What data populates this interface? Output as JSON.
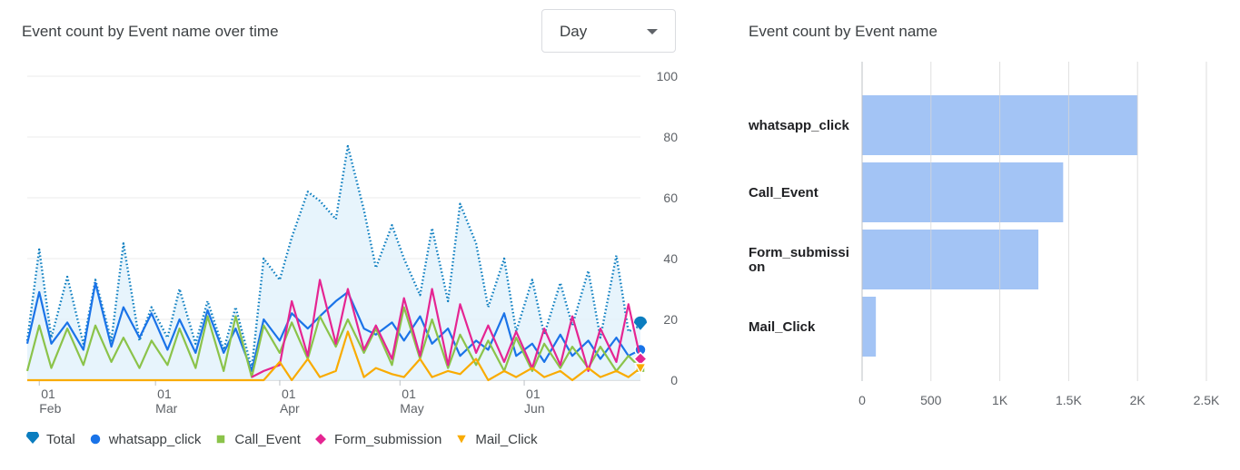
{
  "left_title": "Event count by Event name over time",
  "right_title": "Event count by Event name",
  "dropdown": {
    "value": "Day"
  },
  "legend": [
    {
      "label": "Total",
      "icon": "pin-icon",
      "color": "#0b7dbf"
    },
    {
      "label": "whatsapp_click",
      "icon": "circle-icon",
      "color": "#1a73e8"
    },
    {
      "label": "Call_Event",
      "icon": "square-icon",
      "color": "#8bc34a"
    },
    {
      "label": "Form_submission",
      "icon": "diamond-icon",
      "color": "#e52592"
    },
    {
      "label": "Mail_Click",
      "icon": "triangle-icon",
      "color": "#f9ab00"
    }
  ],
  "chart_data": [
    {
      "type": "line",
      "title": "Event count by Event name over time",
      "ylim": [
        0,
        100
      ],
      "yticks": [
        0,
        20,
        40,
        60,
        80,
        100
      ],
      "x_range": [
        "2024-01-29",
        "2024-06-30"
      ],
      "xticks": [
        {
          "date": "2024-02-01",
          "day": "01",
          "month": "Feb"
        },
        {
          "date": "2024-03-01",
          "day": "01",
          "month": "Mar"
        },
        {
          "date": "2024-04-01",
          "day": "01",
          "month": "Apr"
        },
        {
          "date": "2024-05-01",
          "day": "01",
          "month": "May"
        },
        {
          "date": "2024-06-01",
          "day": "01",
          "month": "Jun"
        }
      ],
      "grid": true,
      "legend_position": "bottom",
      "series": [
        {
          "name": "Total",
          "color": "#0b7dbf",
          "style": "dotted",
          "filled": true,
          "points": [
            [
              "2024-01-29",
              13
            ],
            [
              "2024-02-01",
              43
            ],
            [
              "2024-02-04",
              14
            ],
            [
              "2024-02-08",
              34
            ],
            [
              "2024-02-12",
              12
            ],
            [
              "2024-02-15",
              33
            ],
            [
              "2024-02-19",
              13
            ],
            [
              "2024-02-22",
              45
            ],
            [
              "2024-02-26",
              13
            ],
            [
              "2024-02-29",
              24
            ],
            [
              "2024-03-04",
              14
            ],
            [
              "2024-03-07",
              30
            ],
            [
              "2024-03-11",
              12
            ],
            [
              "2024-03-14",
              26
            ],
            [
              "2024-03-18",
              10
            ],
            [
              "2024-03-21",
              24
            ],
            [
              "2024-03-25",
              4
            ],
            [
              "2024-03-28",
              40
            ],
            [
              "2024-04-01",
              33
            ],
            [
              "2024-04-04",
              47
            ],
            [
              "2024-04-08",
              62
            ],
            [
              "2024-04-11",
              59
            ],
            [
              "2024-04-15",
              53
            ],
            [
              "2024-04-18",
              77
            ],
            [
              "2024-04-22",
              56
            ],
            [
              "2024-04-25",
              37
            ],
            [
              "2024-04-29",
              51
            ],
            [
              "2024-05-02",
              40
            ],
            [
              "2024-05-06",
              28
            ],
            [
              "2024-05-09",
              50
            ],
            [
              "2024-05-13",
              26
            ],
            [
              "2024-05-16",
              58
            ],
            [
              "2024-05-20",
              45
            ],
            [
              "2024-05-23",
              24
            ],
            [
              "2024-05-27",
              40
            ],
            [
              "2024-05-30",
              16
            ],
            [
              "2024-06-03",
              33
            ],
            [
              "2024-06-06",
              15
            ],
            [
              "2024-06-10",
              32
            ],
            [
              "2024-06-13",
              18
            ],
            [
              "2024-06-17",
              36
            ],
            [
              "2024-06-20",
              14
            ],
            [
              "2024-06-24",
              41
            ],
            [
              "2024-06-27",
              16
            ],
            [
              "2024-06-30",
              18
            ]
          ]
        },
        {
          "name": "whatsapp_click",
          "color": "#1a73e8",
          "style": "solid",
          "points": [
            [
              "2024-01-29",
              12
            ],
            [
              "2024-02-01",
              29
            ],
            [
              "2024-02-04",
              12
            ],
            [
              "2024-02-08",
              19
            ],
            [
              "2024-02-12",
              10
            ],
            [
              "2024-02-15",
              32
            ],
            [
              "2024-02-19",
              11
            ],
            [
              "2024-02-22",
              24
            ],
            [
              "2024-02-26",
              14
            ],
            [
              "2024-02-29",
              22
            ],
            [
              "2024-03-04",
              10
            ],
            [
              "2024-03-07",
              20
            ],
            [
              "2024-03-11",
              9
            ],
            [
              "2024-03-14",
              23
            ],
            [
              "2024-03-18",
              9
            ],
            [
              "2024-03-21",
              17
            ],
            [
              "2024-03-25",
              3
            ],
            [
              "2024-03-28",
              20
            ],
            [
              "2024-04-01",
              13
            ],
            [
              "2024-04-04",
              22
            ],
            [
              "2024-04-08",
              17
            ],
            [
              "2024-04-11",
              21
            ],
            [
              "2024-04-15",
              26
            ],
            [
              "2024-04-18",
              29
            ],
            [
              "2024-04-22",
              17
            ],
            [
              "2024-04-25",
              15
            ],
            [
              "2024-04-29",
              19
            ],
            [
              "2024-05-02",
              13
            ],
            [
              "2024-05-06",
              21
            ],
            [
              "2024-05-09",
              12
            ],
            [
              "2024-05-13",
              17
            ],
            [
              "2024-05-16",
              8
            ],
            [
              "2024-05-20",
              13
            ],
            [
              "2024-05-23",
              10
            ],
            [
              "2024-05-27",
              22
            ],
            [
              "2024-05-30",
              8
            ],
            [
              "2024-06-03",
              12
            ],
            [
              "2024-06-06",
              6
            ],
            [
              "2024-06-10",
              15
            ],
            [
              "2024-06-13",
              8
            ],
            [
              "2024-06-17",
              13
            ],
            [
              "2024-06-20",
              7
            ],
            [
              "2024-06-24",
              14
            ],
            [
              "2024-06-27",
              8
            ],
            [
              "2024-06-30",
              10
            ]
          ]
        },
        {
          "name": "Call_Event",
          "color": "#8bc34a",
          "style": "solid",
          "points": [
            [
              "2024-01-29",
              3
            ],
            [
              "2024-02-01",
              18
            ],
            [
              "2024-02-04",
              4
            ],
            [
              "2024-02-08",
              17
            ],
            [
              "2024-02-12",
              5
            ],
            [
              "2024-02-15",
              18
            ],
            [
              "2024-02-19",
              6
            ],
            [
              "2024-02-22",
              14
            ],
            [
              "2024-02-26",
              4
            ],
            [
              "2024-02-29",
              13
            ],
            [
              "2024-03-04",
              5
            ],
            [
              "2024-03-07",
              17
            ],
            [
              "2024-03-11",
              4
            ],
            [
              "2024-03-14",
              21
            ],
            [
              "2024-03-18",
              3
            ],
            [
              "2024-03-21",
              21
            ],
            [
              "2024-03-25",
              1
            ],
            [
              "2024-03-28",
              18
            ],
            [
              "2024-04-01",
              9
            ],
            [
              "2024-04-04",
              19
            ],
            [
              "2024-04-08",
              7
            ],
            [
              "2024-04-11",
              21
            ],
            [
              "2024-04-15",
              11
            ],
            [
              "2024-04-18",
              20
            ],
            [
              "2024-04-22",
              9
            ],
            [
              "2024-04-25",
              17
            ],
            [
              "2024-04-29",
              5
            ],
            [
              "2024-05-02",
              24
            ],
            [
              "2024-05-06",
              7
            ],
            [
              "2024-05-09",
              20
            ],
            [
              "2024-05-13",
              4
            ],
            [
              "2024-05-16",
              15
            ],
            [
              "2024-05-20",
              5
            ],
            [
              "2024-05-23",
              13
            ],
            [
              "2024-05-27",
              3
            ],
            [
              "2024-05-30",
              14
            ],
            [
              "2024-06-03",
              3
            ],
            [
              "2024-06-06",
              12
            ],
            [
              "2024-06-10",
              4
            ],
            [
              "2024-06-13",
              11
            ],
            [
              "2024-06-17",
              4
            ],
            [
              "2024-06-20",
              11
            ],
            [
              "2024-06-24",
              3
            ],
            [
              "2024-06-27",
              8
            ],
            [
              "2024-06-30",
              4
            ]
          ]
        },
        {
          "name": "Form_submission",
          "color": "#e52592",
          "style": "solid",
          "points": [
            [
              "2024-03-25",
              1
            ],
            [
              "2024-03-28",
              3
            ],
            [
              "2024-04-01",
              5
            ],
            [
              "2024-04-04",
              26
            ],
            [
              "2024-04-08",
              8
            ],
            [
              "2024-04-11",
              33
            ],
            [
              "2024-04-15",
              12
            ],
            [
              "2024-04-18",
              30
            ],
            [
              "2024-04-22",
              10
            ],
            [
              "2024-04-25",
              18
            ],
            [
              "2024-04-29",
              7
            ],
            [
              "2024-05-02",
              27
            ],
            [
              "2024-05-06",
              8
            ],
            [
              "2024-05-09",
              30
            ],
            [
              "2024-05-13",
              5
            ],
            [
              "2024-05-16",
              25
            ],
            [
              "2024-05-20",
              9
            ],
            [
              "2024-05-23",
              18
            ],
            [
              "2024-05-27",
              6
            ],
            [
              "2024-05-30",
              16
            ],
            [
              "2024-06-03",
              4
            ],
            [
              "2024-06-06",
              17
            ],
            [
              "2024-06-10",
              5
            ],
            [
              "2024-06-13",
              21
            ],
            [
              "2024-06-17",
              3
            ],
            [
              "2024-06-20",
              17
            ],
            [
              "2024-06-24",
              6
            ],
            [
              "2024-06-27",
              25
            ],
            [
              "2024-06-30",
              7
            ]
          ]
        },
        {
          "name": "Mail_Click",
          "color": "#f9ab00",
          "style": "solid",
          "points": [
            [
              "2024-01-29",
              0
            ],
            [
              "2024-03-25",
              0
            ],
            [
              "2024-03-28",
              0
            ],
            [
              "2024-04-01",
              6
            ],
            [
              "2024-04-04",
              0
            ],
            [
              "2024-04-08",
              7
            ],
            [
              "2024-04-11",
              1
            ],
            [
              "2024-04-15",
              3
            ],
            [
              "2024-04-18",
              16
            ],
            [
              "2024-04-22",
              1
            ],
            [
              "2024-04-25",
              4
            ],
            [
              "2024-04-29",
              2
            ],
            [
              "2024-05-02",
              1
            ],
            [
              "2024-05-06",
              7
            ],
            [
              "2024-05-09",
              1
            ],
            [
              "2024-05-13",
              3
            ],
            [
              "2024-05-16",
              2
            ],
            [
              "2024-05-20",
              7
            ],
            [
              "2024-05-23",
              0
            ],
            [
              "2024-05-27",
              3
            ],
            [
              "2024-05-30",
              1
            ],
            [
              "2024-06-03",
              4
            ],
            [
              "2024-06-06",
              1
            ],
            [
              "2024-06-10",
              3
            ],
            [
              "2024-06-13",
              0
            ],
            [
              "2024-06-17",
              4
            ],
            [
              "2024-06-20",
              1
            ],
            [
              "2024-06-24",
              3
            ],
            [
              "2024-06-27",
              1
            ],
            [
              "2024-06-30",
              4
            ]
          ]
        }
      ]
    },
    {
      "type": "bar",
      "orientation": "horizontal",
      "title": "Event count by Event name",
      "categories": [
        "whatsapp_click",
        "Call_Event",
        "Form_submission",
        "Mail_Click"
      ],
      "category_labels": [
        "whatsapp_click",
        "Call_Event",
        "Form_submissi\non",
        "Mail_Click"
      ],
      "values": [
        2000,
        1460,
        1280,
        100
      ],
      "xlim": [
        0,
        2500
      ],
      "xticks": [
        0,
        500,
        1000,
        1500,
        2000,
        2500
      ],
      "xtick_labels": [
        "0",
        "500",
        "1K",
        "1.5K",
        "2K",
        "2.5K"
      ],
      "color": "#a3c4f5",
      "grid": true
    }
  ]
}
